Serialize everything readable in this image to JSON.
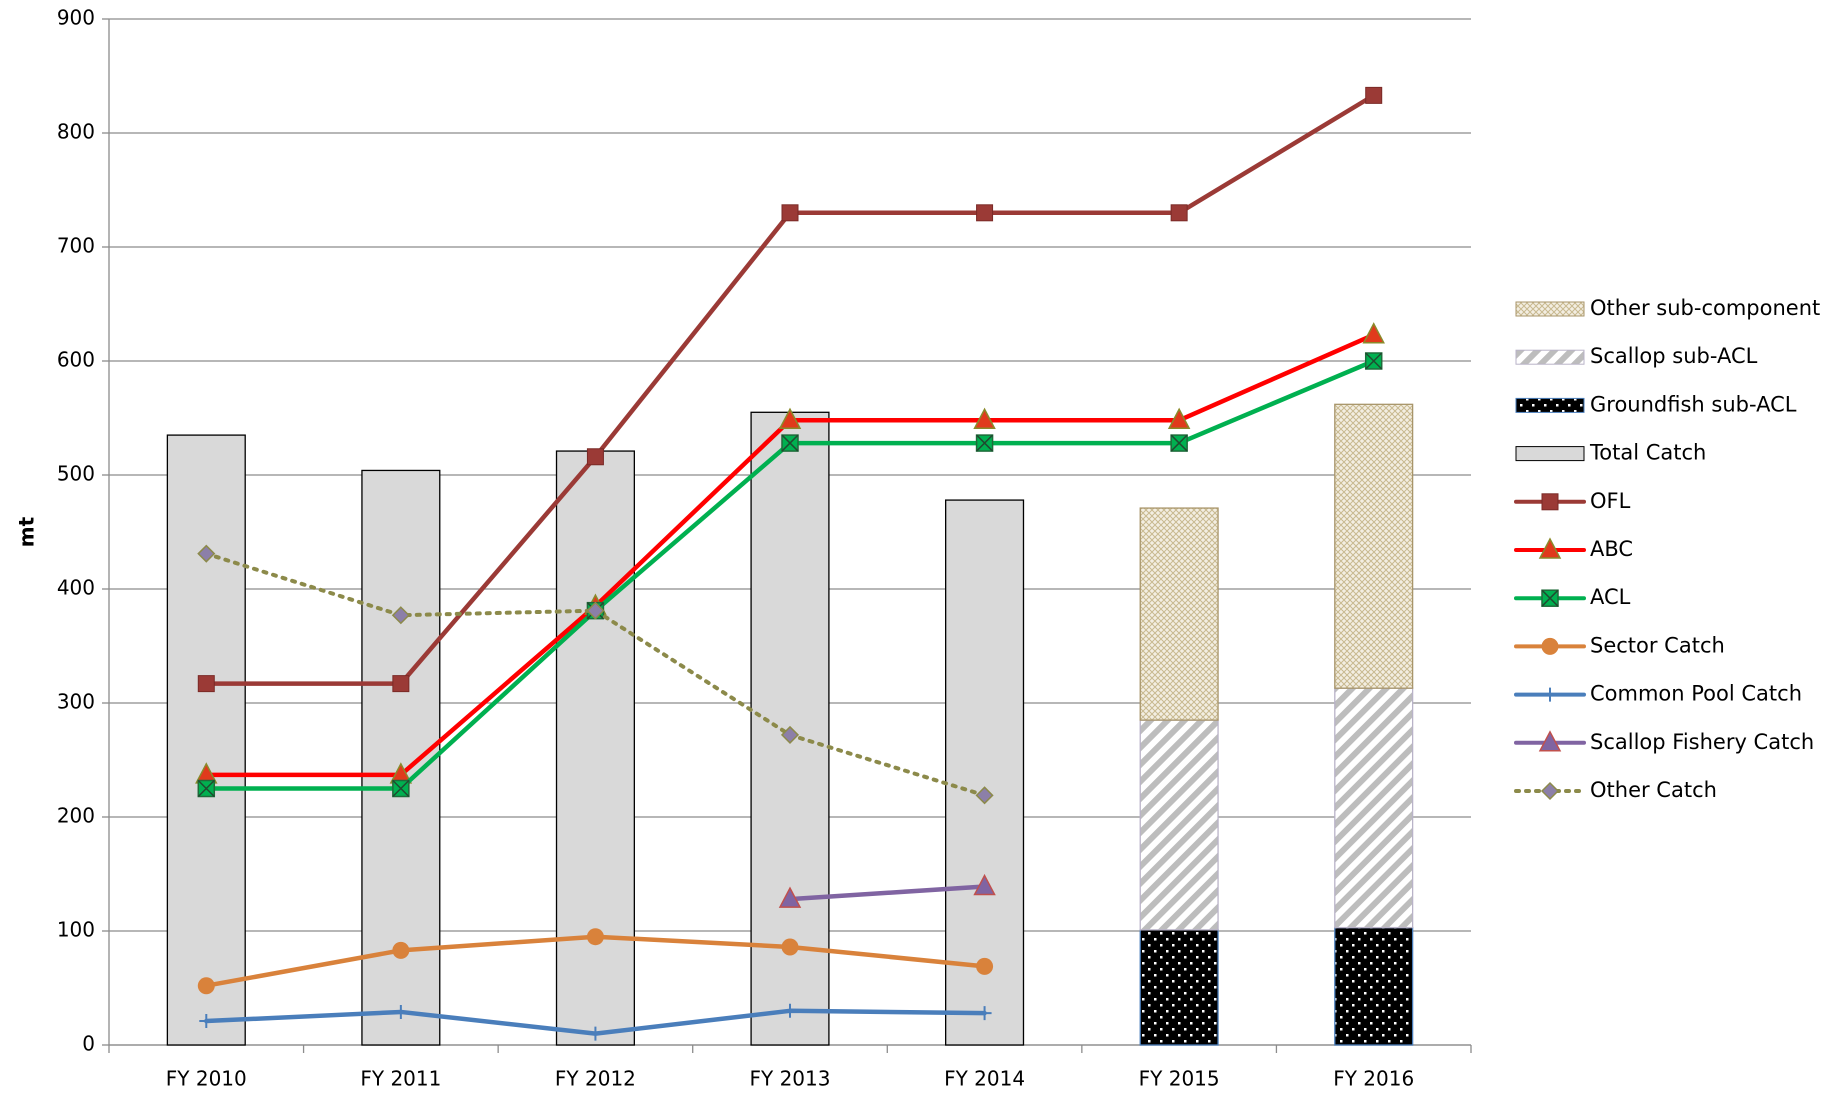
{
  "chart_data": {
    "type": "combo",
    "y_label": "mt",
    "categories": [
      "FY 2010",
      "FY 2011",
      "FY 2012",
      "FY 2013",
      "FY 2014",
      "FY 2015",
      "FY 2016"
    ],
    "ylim": [
      0,
      900
    ],
    "yticks": [
      0,
      100,
      200,
      300,
      400,
      500,
      600,
      700,
      800,
      900
    ],
    "grid": true,
    "legend": "right",
    "series": [
      {
        "name": "Other sub-component",
        "type": "bar",
        "pattern": "crosshatch",
        "color": "#a8956a",
        "values": [
          null,
          null,
          null,
          null,
          null,
          186,
          249
        ]
      },
      {
        "name": "Scallop sub-ACL",
        "type": "bar",
        "pattern": "hatch",
        "color": "#b9b3c8",
        "values": [
          null,
          null,
          null,
          null,
          null,
          184,
          210
        ]
      },
      {
        "name": "Groundfish sub-ACL",
        "type": "bar",
        "pattern": "dots",
        "color": "#4a7ebb",
        "values": [
          null,
          null,
          null,
          null,
          null,
          101,
          103
        ]
      },
      {
        "name": "Total Catch",
        "type": "bar",
        "pattern": "solid",
        "color": "#000000",
        "values": [
          535,
          504,
          521,
          555,
          478,
          null,
          null
        ]
      },
      {
        "name": "OFL",
        "type": "line",
        "marker": "square",
        "color": "#9b3a36",
        "values": [
          317,
          317,
          516,
          730,
          730,
          730,
          833
        ]
      },
      {
        "name": "ABC",
        "type": "line",
        "marker": "triangle",
        "color": "#ff0000",
        "values": [
          237,
          237,
          385,
          548,
          548,
          548,
          623
        ]
      },
      {
        "name": "ACL",
        "type": "line",
        "marker": "squarex",
        "color": "#00b050",
        "values": [
          225,
          225,
          381,
          528,
          528,
          528,
          600
        ]
      },
      {
        "name": "Sector Catch",
        "type": "line",
        "marker": "circle",
        "color": "#d9823b",
        "values": [
          52,
          83,
          95,
          86,
          69,
          null,
          null
        ]
      },
      {
        "name": "Common Pool Catch",
        "type": "line",
        "marker": "plus",
        "color": "#4a7ebb",
        "values": [
          21,
          29,
          10,
          30,
          28,
          null,
          null
        ]
      },
      {
        "name": "Scallop Fishery Catch",
        "type": "line",
        "marker": "triangle",
        "color": "#8064a2",
        "values": [
          null,
          null,
          null,
          128,
          139,
          null,
          null
        ]
      },
      {
        "name": "Other Catch",
        "type": "line",
        "marker": "diamond",
        "dash": "dotted",
        "color": "#8c8a4a",
        "values": [
          431,
          377,
          381,
          272,
          219,
          null,
          null
        ]
      }
    ]
  }
}
